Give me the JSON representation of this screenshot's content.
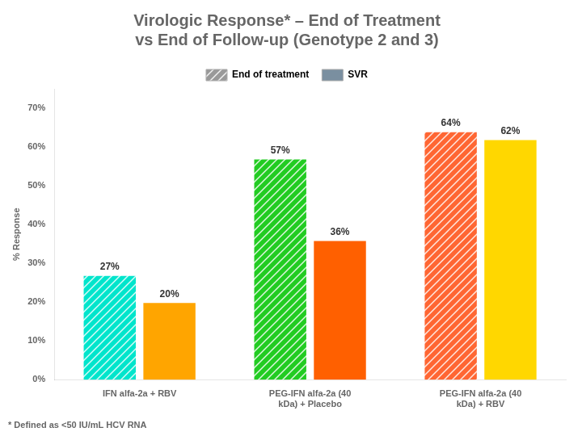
{
  "chart_data": {
    "type": "bar",
    "title": [
      "Virologic Response* – End of Treatment",
      "vs End of Follow-up (Genotype 2 and 3)"
    ],
    "annotations": [
      "* Defined as <50 IU/mL HCV RNA"
    ],
    "y_label": "% Response",
    "categories": [
      "IFN alfa-2a + RBV",
      "PEG-IFN alfa-2a (40\nkDa) + Placebo",
      "PEG-IFN alfa-2a (40\nkDa) + RBV"
    ],
    "series": [
      {
        "name": "End of treatment",
        "color": "#999999",
        "colors": [
          "#00E5CC",
          "#22CC22",
          "#FF6633"
        ],
        "values": [
          27,
          57,
          64
        ],
        "value_labels": [
          "27%",
          "57%",
          "64%"
        ]
      },
      {
        "name": "SVR",
        "color": "#7A8FA0",
        "colors": [
          "#FFA500",
          "#FF6000",
          "#FFD700"
        ],
        "values": [
          20,
          36,
          62
        ],
        "value_labels": [
          "20%",
          "36%",
          "62%"
        ]
      }
    ],
    "ylim": [
      0,
      75
    ],
    "yticks": [
      {
        "value": 0,
        "label": "0%"
      },
      {
        "value": 10,
        "label": "10%"
      },
      {
        "value": 20,
        "label": "20%"
      },
      {
        "value": 30,
        "label": "30%"
      },
      {
        "value": 40,
        "label": "40%"
      },
      {
        "value": 50,
        "label": "50%"
      },
      {
        "value": 60,
        "label": "60%"
      },
      {
        "value": 70,
        "label": "70%"
      }
    ],
    "grid": false,
    "legend": "top",
    "data_labels": true
  }
}
